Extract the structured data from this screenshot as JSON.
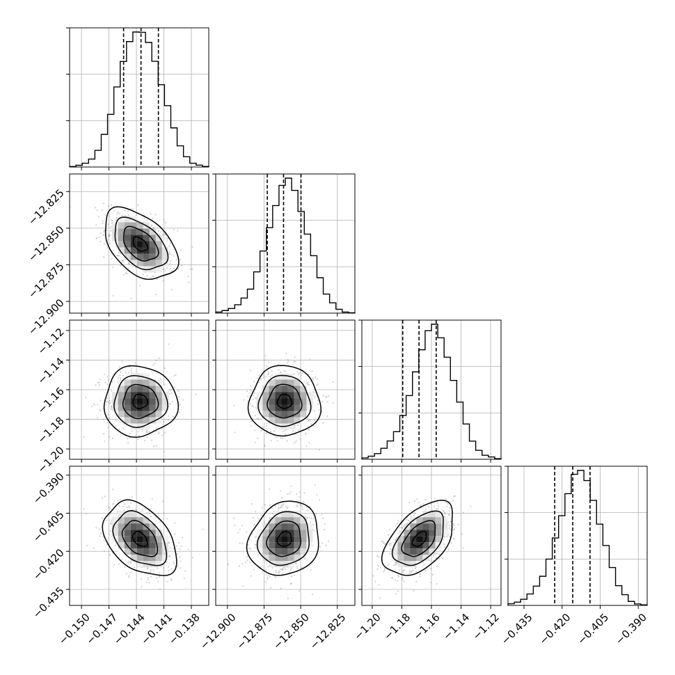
{
  "chart_data": {
    "type": "corner",
    "grid": true,
    "parameters": [
      {
        "range": [
          -0.1513,
          -0.1361
        ],
        "ticks": [
          -0.15,
          -0.147,
          -0.144,
          -0.141,
          -0.138
        ],
        "tick_labels": [
          "−0.150",
          "−0.147",
          "−0.144",
          "−0.141",
          "−0.138"
        ],
        "quantiles": [
          -0.1454,
          -0.1435,
          -0.1416
        ],
        "histogram": [
          0.3,
          1.2,
          2.6,
          5.5,
          11.5,
          22.5,
          36.3,
          55.2,
          72.8,
          86.5,
          93.1,
          92.9,
          85.9,
          72.9,
          56.8,
          42.3,
          27.0,
          14.6,
          7.1,
          2.6,
          1.3,
          0.4
        ],
        "mode": -0.1436
      },
      {
        "range": [
          -12.908,
          -12.813
        ],
        "ticks": [
          -12.9,
          -12.875,
          -12.85,
          -12.825
        ],
        "tick_labels": [
          "−12.900",
          "−12.875",
          "−12.850",
          "−12.825"
        ],
        "quantiles": [
          -12.8728,
          -12.8617,
          -12.8498
        ],
        "histogram": [
          0.8,
          1.9,
          3.4,
          6.1,
          11.0,
          17.5,
          30.1,
          45.3,
          62.3,
          78.4,
          93.1,
          98.4,
          89.5,
          74.1,
          57.6,
          41.9,
          25.8,
          13.9,
          7.5,
          2.8,
          0.8,
          0.3
        ],
        "mode": -12.861
      },
      {
        "range": [
          -1.207,
          -1.113
        ],
        "ticks": [
          -1.2,
          -1.18,
          -1.16,
          -1.14,
          -1.12
        ],
        "tick_labels": [
          "−1.20",
          "−1.18",
          "−1.16",
          "−1.14",
          "−1.12"
        ],
        "quantiles": [
          -1.1794,
          -1.1684,
          -1.1568
        ],
        "histogram": [
          1.0,
          2.3,
          4.2,
          8.1,
          13.5,
          20.4,
          32.3,
          47.0,
          64.5,
          80.8,
          94.9,
          99.6,
          89.6,
          75.3,
          58.2,
          42.2,
          26.0,
          13.4,
          6.6,
          3.0,
          1.7,
          0.5
        ],
        "mode": -1.168
      },
      {
        "range": [
          -0.4413,
          -0.3865
        ],
        "ticks": [
          -0.435,
          -0.42,
          -0.405,
          -0.39
        ],
        "tick_labels": [
          "−0.435",
          "−0.420",
          "−0.405",
          "−0.390"
        ],
        "quantiles": [
          -0.4229,
          -0.4158,
          -0.409
        ],
        "histogram": [
          1.2,
          2.3,
          4.3,
          8.0,
          13.5,
          20.4,
          32.4,
          47.2,
          62.8,
          78.2,
          91.8,
          94.5,
          87.4,
          73.5,
          56.9,
          41.9,
          26.5,
          13.8,
          7.5,
          2.8,
          1.0,
          0.4
        ],
        "mode": -0.4152
      }
    ],
    "pairs": [
      {
        "x": 0,
        "y": 1,
        "correlation": -0.45
      },
      {
        "x": 0,
        "y": 2,
        "correlation": 0.0
      },
      {
        "x": 1,
        "y": 2,
        "correlation": 0.0
      },
      {
        "x": 0,
        "y": 3,
        "correlation": -0.4
      },
      {
        "x": 1,
        "y": 3,
        "correlation": 0.15
      },
      {
        "x": 2,
        "y": 3,
        "correlation": 0.5
      }
    ]
  }
}
